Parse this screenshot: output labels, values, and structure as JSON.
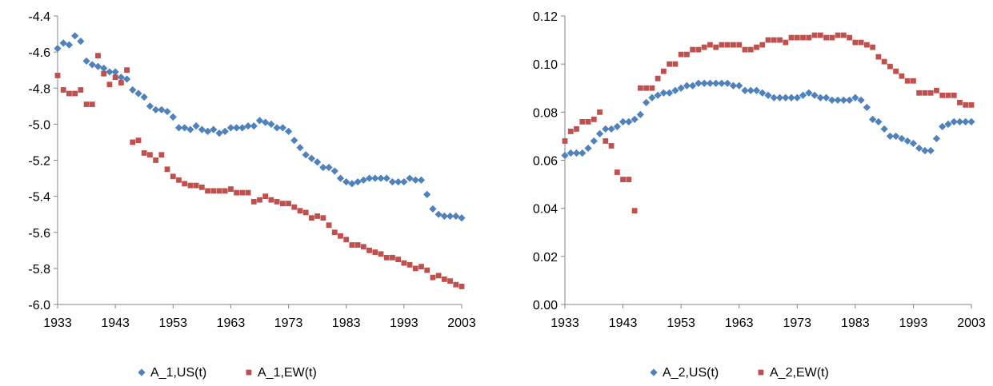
{
  "chart_data": [
    {
      "type": "scatter",
      "title": "",
      "xlabel": "",
      "ylabel": "",
      "xlim": [
        1933,
        2003
      ],
      "ylim": [
        -6.0,
        -4.4
      ],
      "xticks": [
        1933,
        1943,
        1953,
        1963,
        1973,
        1983,
        1993,
        2003
      ],
      "yticks": [
        -6.0,
        -5.8,
        -5.6,
        -5.4,
        -5.2,
        -5.0,
        -4.8,
        -4.6,
        -4.4
      ],
      "ytick_labels": [
        "-6.0",
        "-5.8",
        "-5.6",
        "-5.4",
        "-5.2",
        "-5.0",
        "-4.8",
        "-4.6",
        "-4.4"
      ],
      "grid": false,
      "legend_position": "bottom",
      "series": [
        {
          "name": "A_1,US(t)",
          "color": "#4F81BD",
          "marker": "diamond",
          "x": [
            1933,
            1934,
            1935,
            1936,
            1937,
            1938,
            1939,
            1940,
            1941,
            1942,
            1943,
            1944,
            1945,
            1946,
            1947,
            1948,
            1949,
            1950,
            1951,
            1952,
            1953,
            1954,
            1955,
            1956,
            1957,
            1958,
            1959,
            1960,
            1961,
            1962,
            1963,
            1964,
            1965,
            1966,
            1967,
            1968,
            1969,
            1970,
            1971,
            1972,
            1973,
            1974,
            1975,
            1976,
            1977,
            1978,
            1979,
            1980,
            1981,
            1982,
            1983,
            1984,
            1985,
            1986,
            1987,
            1988,
            1989,
            1990,
            1991,
            1992,
            1993,
            1994,
            1995,
            1996,
            1997,
            1998,
            1999,
            2000,
            2001,
            2002,
            2003
          ],
          "y": [
            -4.58,
            -4.55,
            -4.56,
            -4.51,
            -4.54,
            -4.65,
            -4.67,
            -4.68,
            -4.69,
            -4.71,
            -4.71,
            -4.74,
            -4.75,
            -4.81,
            -4.83,
            -4.85,
            -4.9,
            -4.92,
            -4.92,
            -4.93,
            -4.96,
            -5.02,
            -5.02,
            -5.03,
            -5.01,
            -5.03,
            -5.04,
            -5.03,
            -5.05,
            -5.04,
            -5.02,
            -5.02,
            -5.02,
            -5.01,
            -5.01,
            -4.98,
            -4.99,
            -5.0,
            -5.02,
            -5.02,
            -5.04,
            -5.09,
            -5.13,
            -5.17,
            -5.19,
            -5.21,
            -5.24,
            -5.24,
            -5.26,
            -5.3,
            -5.32,
            -5.33,
            -5.32,
            -5.31,
            -5.3,
            -5.3,
            -5.3,
            -5.3,
            -5.32,
            -5.32,
            -5.32,
            -5.3,
            -5.31,
            -5.31,
            -5.39,
            -5.47,
            -5.5,
            -5.51,
            -5.51,
            -5.51,
            -5.52
          ]
        },
        {
          "name": "A_1,EW(t)",
          "color": "#C0504D",
          "marker": "square",
          "x": [
            1933,
            1934,
            1935,
            1936,
            1937,
            1938,
            1939,
            1940,
            1941,
            1942,
            1943,
            1944,
            1945,
            1946,
            1947,
            1948,
            1949,
            1950,
            1951,
            1952,
            1953,
            1954,
            1955,
            1956,
            1957,
            1958,
            1959,
            1960,
            1961,
            1962,
            1963,
            1964,
            1965,
            1966,
            1967,
            1968,
            1969,
            1970,
            1971,
            1972,
            1973,
            1974,
            1975,
            1976,
            1977,
            1978,
            1979,
            1980,
            1981,
            1982,
            1983,
            1984,
            1985,
            1986,
            1987,
            1988,
            1989,
            1990,
            1991,
            1992,
            1993,
            1994,
            1995,
            1996,
            1997,
            1998,
            1999,
            2000,
            2001,
            2002,
            2003
          ],
          "y": [
            -4.73,
            -4.81,
            -4.83,
            -4.83,
            -4.81,
            -4.89,
            -4.89,
            -4.62,
            -4.72,
            -4.78,
            -4.74,
            -4.77,
            -4.7,
            -5.1,
            -5.09,
            -5.16,
            -5.17,
            -5.2,
            -5.17,
            -5.25,
            -5.29,
            -5.31,
            -5.33,
            -5.34,
            -5.34,
            -5.35,
            -5.37,
            -5.37,
            -5.37,
            -5.37,
            -5.36,
            -5.38,
            -5.38,
            -5.38,
            -5.43,
            -5.42,
            -5.4,
            -5.42,
            -5.43,
            -5.44,
            -5.44,
            -5.46,
            -5.48,
            -5.49,
            -5.52,
            -5.51,
            -5.52,
            -5.56,
            -5.6,
            -5.62,
            -5.64,
            -5.67,
            -5.67,
            -5.68,
            -5.7,
            -5.71,
            -5.72,
            -5.74,
            -5.74,
            -5.75,
            -5.77,
            -5.78,
            -5.8,
            -5.79,
            -5.81,
            -5.85,
            -5.84,
            -5.86,
            -5.87,
            -5.89,
            -5.9
          ]
        }
      ]
    },
    {
      "type": "scatter",
      "title": "",
      "xlabel": "",
      "ylabel": "",
      "xlim": [
        1933,
        2003
      ],
      "ylim": [
        0,
        0.12
      ],
      "xticks": [
        1933,
        1943,
        1953,
        1963,
        1973,
        1983,
        1993,
        2003
      ],
      "yticks": [
        0,
        0.02,
        0.04,
        0.06,
        0.08,
        0.1,
        0.12
      ],
      "ytick_labels": [
        "0.00",
        "0.02",
        "0.04",
        "0.06",
        "0.08",
        "0.10",
        "0.12"
      ],
      "grid": false,
      "legend_position": "bottom",
      "series": [
        {
          "name": "A_2,US(t)",
          "color": "#4F81BD",
          "marker": "diamond",
          "x": [
            1933,
            1934,
            1935,
            1936,
            1937,
            1938,
            1939,
            1940,
            1941,
            1942,
            1943,
            1944,
            1945,
            1946,
            1947,
            1948,
            1949,
            1950,
            1951,
            1952,
            1953,
            1954,
            1955,
            1956,
            1957,
            1958,
            1959,
            1960,
            1961,
            1962,
            1963,
            1964,
            1965,
            1966,
            1967,
            1968,
            1969,
            1970,
            1971,
            1972,
            1973,
            1974,
            1975,
            1976,
            1977,
            1978,
            1979,
            1980,
            1981,
            1982,
            1983,
            1984,
            1985,
            1986,
            1987,
            1988,
            1989,
            1990,
            1991,
            1992,
            1993,
            1994,
            1995,
            1996,
            1997,
            1998,
            1999,
            2000,
            2001,
            2002,
            2003
          ],
          "y": [
            0.062,
            0.063,
            0.063,
            0.063,
            0.065,
            0.068,
            0.071,
            0.073,
            0.073,
            0.074,
            0.076,
            0.076,
            0.077,
            0.079,
            0.084,
            0.086,
            0.087,
            0.088,
            0.088,
            0.089,
            0.09,
            0.091,
            0.091,
            0.092,
            0.092,
            0.092,
            0.092,
            0.092,
            0.092,
            0.091,
            0.091,
            0.089,
            0.089,
            0.089,
            0.088,
            0.087,
            0.086,
            0.086,
            0.086,
            0.086,
            0.086,
            0.087,
            0.088,
            0.087,
            0.086,
            0.086,
            0.085,
            0.085,
            0.085,
            0.085,
            0.086,
            0.085,
            0.082,
            0.077,
            0.076,
            0.073,
            0.07,
            0.07,
            0.069,
            0.068,
            0.067,
            0.065,
            0.064,
            0.064,
            0.069,
            0.074,
            0.075,
            0.076,
            0.076,
            0.076,
            0.076
          ]
        },
        {
          "name": "A_2,EW(t)",
          "color": "#C0504D",
          "marker": "square",
          "x": [
            1933,
            1934,
            1935,
            1936,
            1937,
            1938,
            1939,
            1940,
            1941,
            1942,
            1943,
            1944,
            1945,
            1946,
            1947,
            1948,
            1949,
            1950,
            1951,
            1952,
            1953,
            1954,
            1955,
            1956,
            1957,
            1958,
            1959,
            1960,
            1961,
            1962,
            1963,
            1964,
            1965,
            1966,
            1967,
            1968,
            1969,
            1970,
            1971,
            1972,
            1973,
            1974,
            1975,
            1976,
            1977,
            1978,
            1979,
            1980,
            1981,
            1982,
            1983,
            1984,
            1985,
            1986,
            1987,
            1988,
            1989,
            1990,
            1991,
            1992,
            1993,
            1994,
            1995,
            1996,
            1997,
            1998,
            1999,
            2000,
            2001,
            2002,
            2003
          ],
          "y": [
            0.068,
            0.072,
            0.073,
            0.076,
            0.076,
            0.077,
            0.08,
            0.068,
            0.066,
            0.055,
            0.052,
            0.052,
            0.039,
            0.09,
            0.09,
            0.09,
            0.094,
            0.097,
            0.1,
            0.1,
            0.104,
            0.104,
            0.106,
            0.106,
            0.107,
            0.108,
            0.107,
            0.108,
            0.108,
            0.108,
            0.108,
            0.106,
            0.106,
            0.107,
            0.108,
            0.11,
            0.11,
            0.11,
            0.109,
            0.111,
            0.111,
            0.111,
            0.111,
            0.112,
            0.112,
            0.111,
            0.111,
            0.112,
            0.112,
            0.111,
            0.109,
            0.109,
            0.108,
            0.107,
            0.103,
            0.101,
            0.099,
            0.097,
            0.095,
            0.093,
            0.093,
            0.088,
            0.088,
            0.088,
            0.089,
            0.087,
            0.087,
            0.087,
            0.084,
            0.083,
            0.083
          ]
        }
      ]
    }
  ]
}
